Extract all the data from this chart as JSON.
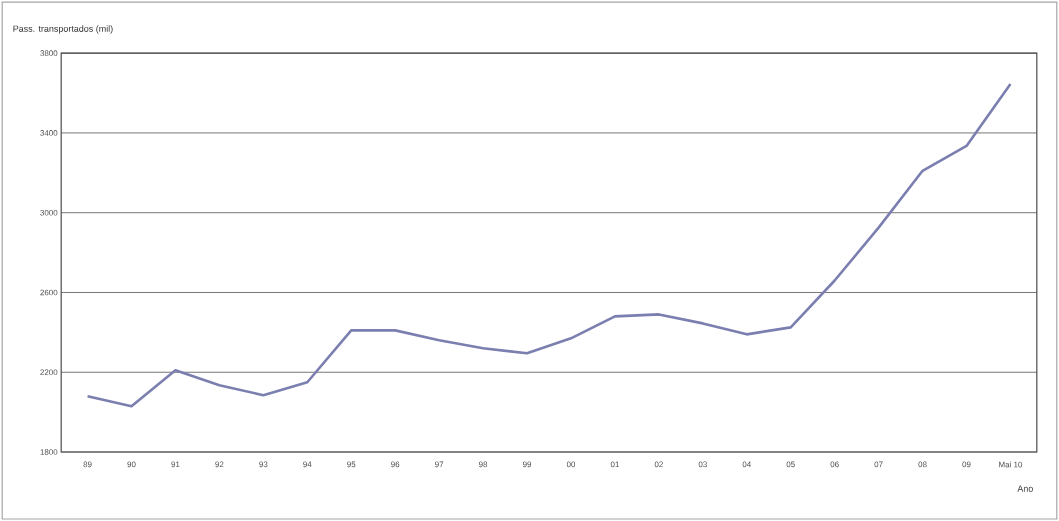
{
  "chart_data": {
    "type": "line",
    "ylabel": "Pass. transportados (mil)",
    "xlabel": "Ano",
    "categories": [
      "89",
      "90",
      "91",
      "92",
      "93",
      "94",
      "95",
      "96",
      "97",
      "98",
      "99",
      "00",
      "01",
      "02",
      "03",
      "04",
      "05",
      "06",
      "07",
      "08",
      "09",
      "Mai 10"
    ],
    "series": [
      {
        "color": "#7b7fb0",
        "values": [
          2080,
          2030,
          2210,
          2135,
          2085,
          2150,
          2410,
          2410,
          2360,
          2320,
          2295,
          2370,
          2480,
          2490,
          2445,
          2390,
          2425,
          2660,
          2925,
          3210,
          3335,
          3645
        ]
      }
    ],
    "ylim": [
      1800,
      3800
    ],
    "yticks": [
      1800,
      2200,
      2600,
      3000,
      3400,
      3800
    ],
    "grid": "y",
    "marker": "none",
    "line_style": "solid"
  }
}
